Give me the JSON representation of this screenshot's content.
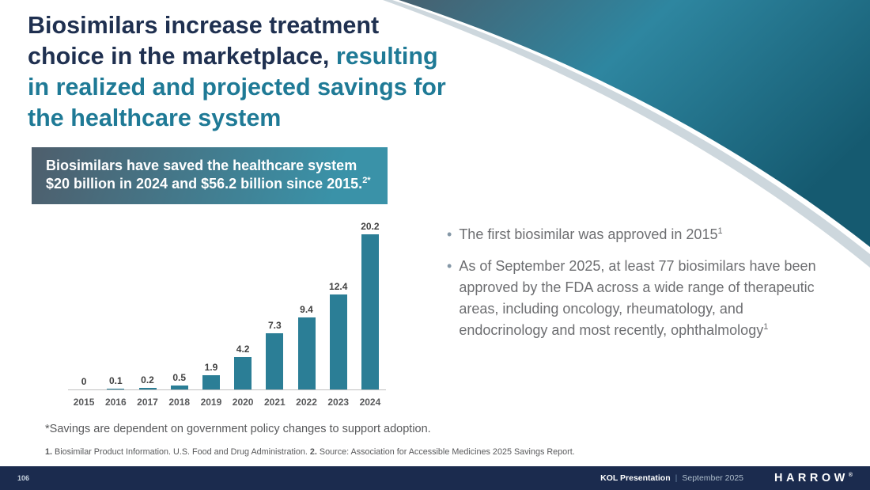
{
  "title": {
    "line1": "Biosimilars increase treatment",
    "line2_dark": "choice in the marketplace, ",
    "line2_teal": "resulting",
    "line3": "in realized and projected savings for",
    "line4": "the healthcare system"
  },
  "callout": {
    "text": "Biosimilars have saved the healthcare system $20 billion in 2024 and $56.2 billion since 2015.",
    "sup": "2*"
  },
  "chart_data": {
    "type": "bar",
    "categories": [
      "2015",
      "2016",
      "2017",
      "2018",
      "2019",
      "2020",
      "2021",
      "2022",
      "2023",
      "2024"
    ],
    "values": [
      0,
      0.1,
      0.2,
      0.5,
      1.9,
      4.2,
      7.3,
      9.4,
      12.4,
      20.2
    ],
    "title": "",
    "xlabel": "",
    "ylabel": "",
    "ylim": [
      0,
      21
    ],
    "grid": false,
    "legend": false,
    "bar_color": "#2B7E96",
    "value_label_color": "#404040",
    "axis_label_color": "#58595B"
  },
  "bullets": [
    {
      "text": "The first biosimilar was approved in 2015",
      "sup": "1"
    },
    {
      "text": "As of September 2025, at least 77 biosimilars have been approved by the FDA across a wide range of therapeutic areas, including oncology, rheumatology, and endocrinology and most recently, ophthalmology",
      "sup": "1"
    }
  ],
  "footnote": "*Savings are dependent on government policy changes to support adoption.",
  "references": {
    "r1_label": "1.",
    "r1_text": "Biosimilar Product Information. U.S. Food and Drug Administration.",
    "r2_label": "2.",
    "r2_text": "Source: Association for Accessible Medicines 2025 Savings Report."
  },
  "footer": {
    "page_number": "106",
    "presentation": "KOL Presentation",
    "separator": "|",
    "date": "September 2025",
    "brand": "HARROW",
    "brand_mark": "®"
  },
  "colors": {
    "title_navy": "#1F3050",
    "title_teal": "#1F7A96",
    "bar_teal": "#2B7E96",
    "callout_start": "#4E5E6C",
    "callout_end": "#3A92A8",
    "footer_navy": "#1B2B4E",
    "body_gray": "#6D6E71"
  }
}
